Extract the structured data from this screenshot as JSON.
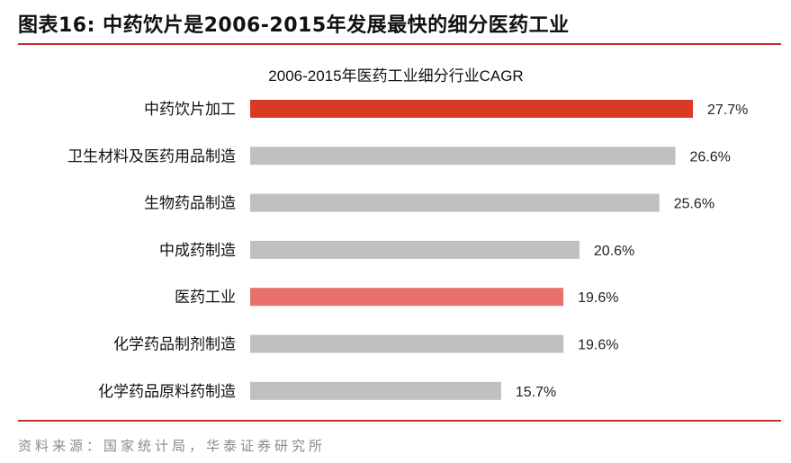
{
  "figure": {
    "title": "图表16:    中药饮片是2006-2015年发展最快的细分医药工业",
    "source": "资料来源：国家统计局，华泰证券研究所",
    "rule_color": "#c8312a"
  },
  "chart_data": {
    "type": "bar",
    "orientation": "horizontal",
    "title": "2006-2015年医药工业细分行业CAGR",
    "categories": [
      "中药饮片加工",
      "卫生材料及医药用品制造",
      "生物药品制造",
      "中成药制造",
      "医药工业",
      "化学药品制剂制造",
      "化学药品原料药制造"
    ],
    "values": [
      27.7,
      26.6,
      25.6,
      20.6,
      19.6,
      19.6,
      15.7
    ],
    "value_labels": [
      "27.7%",
      "26.6%",
      "25.6%",
      "20.6%",
      "19.6%",
      "19.6%",
      "15.7%"
    ],
    "colors": [
      "#d83a26",
      "#c0bfc1",
      "#c0bfc1",
      "#c0bfc1",
      "#e8716a",
      "#c0bfc1",
      "#c0bfc1"
    ],
    "unit": "%",
    "xlim": [
      0,
      27.7
    ],
    "xlabel": "",
    "ylabel": "",
    "grid": false,
    "legend": "none"
  }
}
